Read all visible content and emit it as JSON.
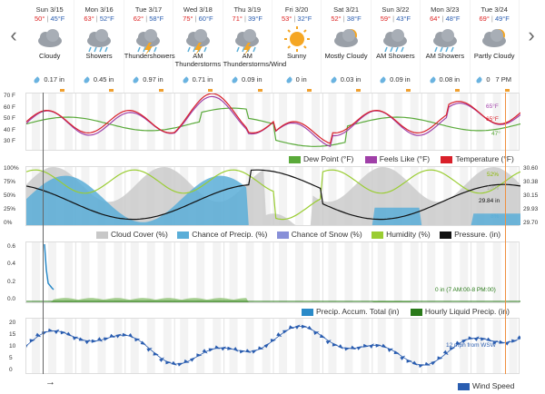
{
  "nav": {
    "prev": "‹",
    "next": "›"
  },
  "days": [
    {
      "name": "Sun 3/15",
      "hi": "50°",
      "lo": "45°F",
      "cond": [
        "Cloudy"
      ],
      "precip": "0.17 in",
      "icon": "cloud-icon"
    },
    {
      "name": "Mon 3/16",
      "hi": "63°",
      "lo": "52°F",
      "cond": [
        "Showers"
      ],
      "precip": "0.45 in",
      "icon": "showers-icon"
    },
    {
      "name": "Tue 3/17",
      "hi": "62°",
      "lo": "58°F",
      "cond": [
        "Thundershowers"
      ],
      "precip": "0.97 in",
      "icon": "thundershowers-icon"
    },
    {
      "name": "Wed 3/18",
      "hi": "75°",
      "lo": "60°F",
      "cond": [
        "AM",
        "Thunderstorms"
      ],
      "precip": "0.71 in",
      "icon": "thunderstorm-icon"
    },
    {
      "name": "Thu 3/19",
      "hi": "71°",
      "lo": "39°F",
      "cond": [
        "AM",
        "Thunderstorms/Wind"
      ],
      "precip": "0.09 in",
      "icon": "thunderstorm-icon"
    },
    {
      "name": "Fri 3/20",
      "hi": "53°",
      "lo": "32°F",
      "cond": [
        "Sunny"
      ],
      "precip": "0 in",
      "icon": "sun-icon"
    },
    {
      "name": "Sat 3/21",
      "hi": "52°",
      "lo": "38°F",
      "cond": [
        "Mostly Cloudy"
      ],
      "precip": "0.03 in",
      "icon": "mostly-cloudy-icon"
    },
    {
      "name": "Sun 3/22",
      "hi": "59°",
      "lo": "43°F",
      "cond": [
        "AM Showers"
      ],
      "precip": "0.09 in",
      "icon": "showers-icon"
    },
    {
      "name": "Mon 3/23",
      "hi": "64°",
      "lo": "48°F",
      "cond": [
        "AM Showers"
      ],
      "precip": "0.08 in",
      "icon": "showers-icon"
    },
    {
      "name": "Tue 3/24",
      "hi": "69°",
      "lo": "49°F",
      "cond": [
        "Partly Cloudy"
      ],
      "precip": "0",
      "icon": "partly-cloudy-icon",
      "extra": "7 PM"
    }
  ],
  "temp_panel": {
    "yticks": [
      "70 F",
      "60 F",
      "50 F",
      "40 F",
      "30 F"
    ],
    "right_labels": {
      "feels": "65°F",
      "temp": "65°F",
      "dew": "47°"
    },
    "legend": {
      "dew": "Dew Point (°F)",
      "feels": "Feels Like (°F)",
      "temp": "Temperature (°F)"
    }
  },
  "cloud_panel": {
    "yticks_left": [
      "100%",
      "75%",
      "50%",
      "25%",
      "0%"
    ],
    "yticks_right": [
      "30.60",
      "30.38",
      "30.15",
      "29.93",
      "29.70"
    ],
    "right_labels": {
      "humidity": "52%",
      "cloud": "18%",
      "pressure": "29.84 in",
      "precip_chance": "8%"
    },
    "legend": {
      "cloud": "Cloud Cover (%)",
      "precip": "Chance of Precip. (%)",
      "snow": "Chance of Snow (%)",
      "humidity": "Humidity (%)",
      "pressure": "Pressure. (in)"
    }
  },
  "accum_panel": {
    "yticks": [
      "0.6",
      "0.4",
      "0.2",
      "0.0"
    ],
    "note": "0 in (7 AM:00-8 PM:00)",
    "legend": {
      "accum": "Precip. Accum. Total (in)",
      "hourly": "Hourly Liquid Precip. (in)"
    }
  },
  "wind_panel": {
    "yticks": [
      "20",
      "15",
      "10",
      "5",
      "0"
    ],
    "note": "12 mph from WSW",
    "legend": {
      "speed": "Wind Speed"
    }
  },
  "colors": {
    "temp": "#d9202a",
    "feels": "#a040a8",
    "dew": "#5aaa3a",
    "cloud": "#c8c8c8",
    "precip": "#5aaed8",
    "humidity": "#9acd32",
    "pressure": "#111111",
    "accum": "#2a8ac8",
    "hourly": "#2a7a1a",
    "wind": "#2a5db0",
    "now": "#f09040"
  }
}
